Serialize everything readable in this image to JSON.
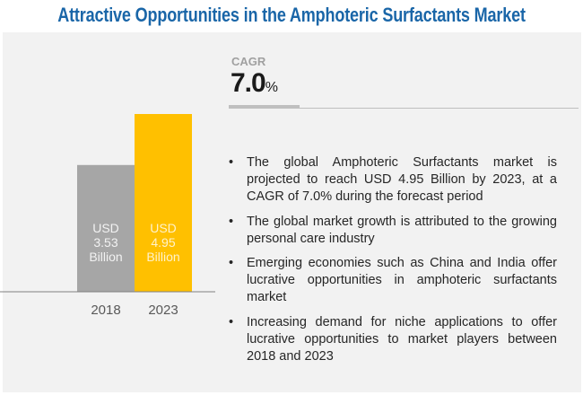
{
  "title": "Attractive Opportunities in the Amphoteric Surfactants Market",
  "cagr": {
    "label": "CAGR",
    "value": "7.0",
    "unit": "%"
  },
  "chart_data": {
    "type": "bar",
    "categories": [
      "2018",
      "2023"
    ],
    "values": [
      3.53,
      4.95
    ],
    "unit": "USD Billion",
    "data_labels": [
      [
        "USD",
        "3.53",
        "Billion"
      ],
      [
        "USD",
        "4.95",
        "Billion"
      ]
    ],
    "colors": [
      "#a6a6a6",
      "#ffc000"
    ],
    "label_colors": [
      "#f2f2f2",
      "#fff2cc"
    ],
    "ylim": [
      0,
      4.95
    ],
    "grid": false
  },
  "bullets": [
    "The global Amphoteric Surfactants market is projected to reach USD 4.95 Billion by 2023, at a CAGR of 7.0% during the forecast period",
    "The global market growth is attributed to the growing personal care industry",
    "Emerging economies such as China and India offer lucrative opportunities in amphoteric surfactants market",
    "Increasing demand for niche applications to offer lucrative opportunities to market players between 2018 and 2023"
  ],
  "bullet_char": "•"
}
